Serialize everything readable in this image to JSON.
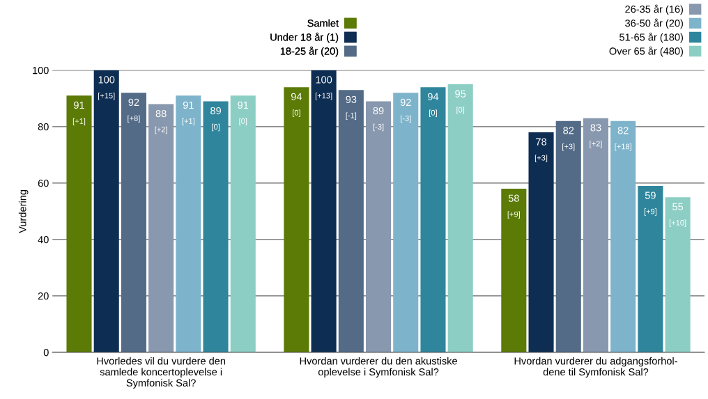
{
  "chart_data": {
    "type": "bar",
    "ylabel": "Vurdering",
    "categories": [
      "Hvorledes vil du vurdere den\nsamlede koncertoplevelse i\nSymfonisk Sal?",
      "Hvordan vurderer du den akustiske\noplevelse i Symfonisk Sal?",
      "Hvordan vurderer du adgangsforhol-\ndene til Symfonisk Sal?"
    ],
    "series": [
      {
        "name": "Samlet",
        "color": "#5b7a06",
        "values": [
          91,
          94,
          58
        ],
        "value_labels": [
          "91\n[+1]",
          "94\n[0]",
          "58\n[+9]"
        ]
      },
      {
        "name": "Under 18 år (1)",
        "color": "#0e2d52",
        "values": [
          100,
          100,
          78
        ],
        "value_labels": [
          "100\n[+15]",
          "100\n[+13]",
          "78\n[+3]"
        ]
      },
      {
        "name": "18-25 år (20)",
        "color": "#536b87",
        "values": [
          92,
          93,
          82
        ],
        "value_labels": [
          "92\n[+8]",
          "93\n[-1]",
          "82\n[+3]"
        ]
      },
      {
        "name": "26-35 år (16)",
        "color": "#8898ae",
        "values": [
          88,
          89,
          83
        ],
        "value_labels": [
          "88\n[+2]",
          "89\n[-3]",
          "83\n[+2]"
        ]
      },
      {
        "name": "36-50 år (20)",
        "color": "#7eb4cb",
        "values": [
          91,
          92,
          82
        ],
        "value_labels": [
          "91\n[+1]",
          "92\n[-3]",
          "82\n[+18]"
        ]
      },
      {
        "name": "51-65 år (180)",
        "color": "#2f869c",
        "values": [
          89,
          94,
          59
        ],
        "value_labels": [
          "89\n[0]",
          "94\n[0]",
          "59\n[+9]"
        ]
      },
      {
        "name": "Over 65 år (480)",
        "color": "#8ccec4",
        "values": [
          91,
          95,
          55
        ],
        "value_labels": [
          "91\n[0]",
          "95\n[0]",
          "55\n[+10]"
        ]
      }
    ],
    "ylim": [
      0,
      100
    ],
    "yticks": [
      0,
      20,
      40,
      60,
      80,
      100
    ],
    "grid": "y",
    "legend": "top right"
  }
}
